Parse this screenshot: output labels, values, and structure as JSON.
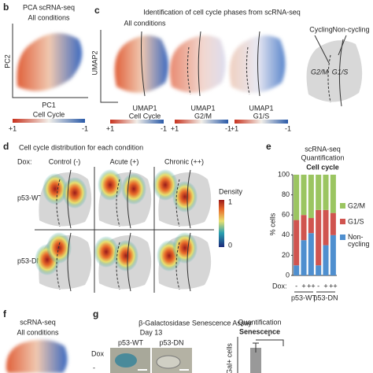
{
  "panels": {
    "b": {
      "letter": "b",
      "title": "PCA scRNA-seq",
      "subtitle": "All conditions",
      "y_label": "PC2",
      "x_label": "PC1",
      "colorbar_title": "Cell Cycle",
      "colorbar_high": "+1",
      "colorbar_low": "-1"
    },
    "c": {
      "letter": "c",
      "title": "Identification of cell cycle phases from scRNA-seq",
      "subtitle": "All conditions",
      "y_label": "UMAP2",
      "plots": [
        {
          "x_label": "UMAP1",
          "colorbar_title": "Cell Cycle",
          "colorbar_high": "+1",
          "colorbar_low": "-1"
        },
        {
          "x_label": "UMAP1",
          "colorbar_title": "G2/M",
          "colorbar_high": "+1",
          "colorbar_low": "-1"
        },
        {
          "x_label": "UMAP1",
          "colorbar_title": "G1/S",
          "colorbar_high": "+1",
          "colorbar_low": "-1"
        }
      ],
      "schematic": {
        "left": "Cycling",
        "right": "Non-cycling",
        "phase_a": "G2/M",
        "phase_b": "G1/S"
      }
    },
    "d": {
      "letter": "d",
      "title": "Cell cycle distribution for each condition",
      "dox": "Dox:",
      "columns": [
        "Control (-)",
        "Acute (+)",
        "Chronic (++)"
      ],
      "rows": [
        "p53-WT",
        "p53-DN"
      ],
      "colorbar_title": "Density",
      "colorbar_high": "1",
      "colorbar_low": "0"
    },
    "e": {
      "letter": "e",
      "title": "scRNA-seq",
      "subtitle": "Quantification",
      "heading": "Cell cycle"
    },
    "f": {
      "letter": "f",
      "title": "scRNA-seq",
      "subtitle": "All conditions"
    },
    "g": {
      "letter": "g",
      "title": "β-Galactosidase Senescence Assay",
      "day": "Day 13",
      "columns": [
        "p53-WT",
        "p53-DN"
      ],
      "dox": "Dox",
      "row": "-",
      "quant_title": "Quantification",
      "quant_heading": "Senescence",
      "y_label": "Gal+ cells",
      "significance": "*"
    }
  },
  "chart_data": {
    "type": "stacked_bar",
    "y_label": "% cells",
    "x_prefix": "Dox:",
    "categories": [
      "-",
      "+",
      "++",
      "-",
      "+",
      "++"
    ],
    "groups": [
      "p53-WT",
      "p53-DN"
    ],
    "series": [
      {
        "name": "G2/M",
        "color": "#9bc561",
        "values": [
          45,
          40,
          43,
          35,
          35,
          38
        ]
      },
      {
        "name": "G1/S",
        "color": "#d0544f",
        "values": [
          45,
          25,
          15,
          55,
          35,
          22
        ]
      },
      {
        "name": "Non-cycling",
        "color": "#4f8fcf",
        "values": [
          10,
          35,
          42,
          10,
          30,
          40
        ]
      }
    ],
    "ylim": [
      0,
      100
    ],
    "yticks": [
      0,
      20,
      40,
      60,
      80,
      100
    ]
  }
}
